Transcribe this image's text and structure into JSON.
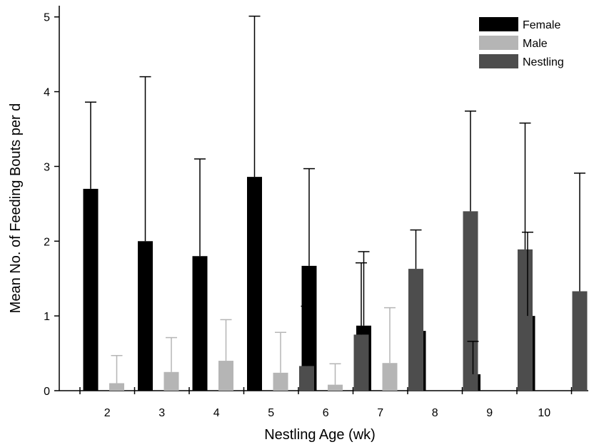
{
  "chart_data": {
    "type": "bar",
    "title": "",
    "xlabel": "Nestling Age (wk)",
    "ylabel": "Mean No. of Feeding Bouts per d",
    "ylim": [
      0,
      5.15
    ],
    "yticks": [
      "0",
      "1",
      "2",
      "3",
      "4",
      "5"
    ],
    "categories": [
      "2",
      "3",
      "4",
      "5",
      "6",
      "7",
      "8",
      "9",
      "10"
    ],
    "legend_position": "top-right",
    "grid": false,
    "series": [
      {
        "name": "Female",
        "color": "#000000",
        "values": [
          2.7,
          2.0,
          1.8,
          2.86,
          1.67,
          0.87,
          0.8,
          0.22,
          1.0
        ],
        "error_upper": [
          3.86,
          4.2,
          3.1,
          5.01,
          2.97,
          1.86,
          null,
          0.66,
          2.12
        ]
      },
      {
        "name": "Male",
        "color": "#b5b5b5",
        "values": [
          0.1,
          0.25,
          0.4,
          0.24,
          0.08,
          0.37,
          null,
          null,
          null
        ],
        "error_upper": [
          0.47,
          0.71,
          0.95,
          0.78,
          0.36,
          1.11,
          null,
          null,
          null
        ]
      },
      {
        "name": "Nestling",
        "color": "#4d4d4d",
        "values": [
          null,
          null,
          null,
          0.33,
          0.75,
          1.63,
          2.4,
          1.89,
          1.33
        ],
        "error_upper": [
          null,
          null,
          null,
          1.13,
          1.71,
          2.15,
          3.74,
          3.58,
          2.91
        ]
      }
    ]
  }
}
